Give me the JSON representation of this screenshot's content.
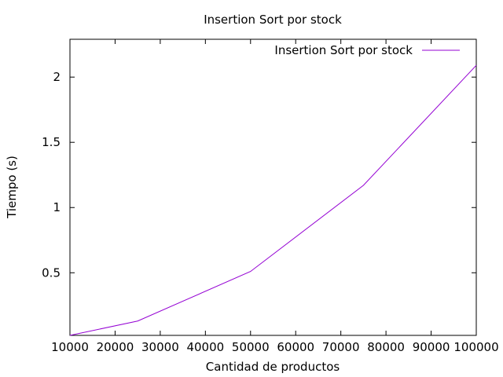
{
  "chart_data": {
    "type": "line",
    "title": "Insertion Sort por stock",
    "xlabel": "Cantidad de productos",
    "ylabel": "Tiempo (s)",
    "xlim": [
      10000,
      100000
    ],
    "ylim": [
      0.02,
      2.29
    ],
    "x_ticks": [
      10000,
      20000,
      30000,
      40000,
      50000,
      60000,
      70000,
      80000,
      90000,
      100000
    ],
    "y_ticks": [
      0.5,
      1,
      1.5,
      2
    ],
    "grid": false,
    "legend_position": "top-right",
    "series": [
      {
        "name": "Insertion Sort por stock",
        "color": "#9400d3",
        "x": [
          10000,
          25000,
          50000,
          75000,
          100000
        ],
        "y": [
          0.02,
          0.13,
          0.51,
          1.17,
          2.09
        ]
      }
    ]
  }
}
